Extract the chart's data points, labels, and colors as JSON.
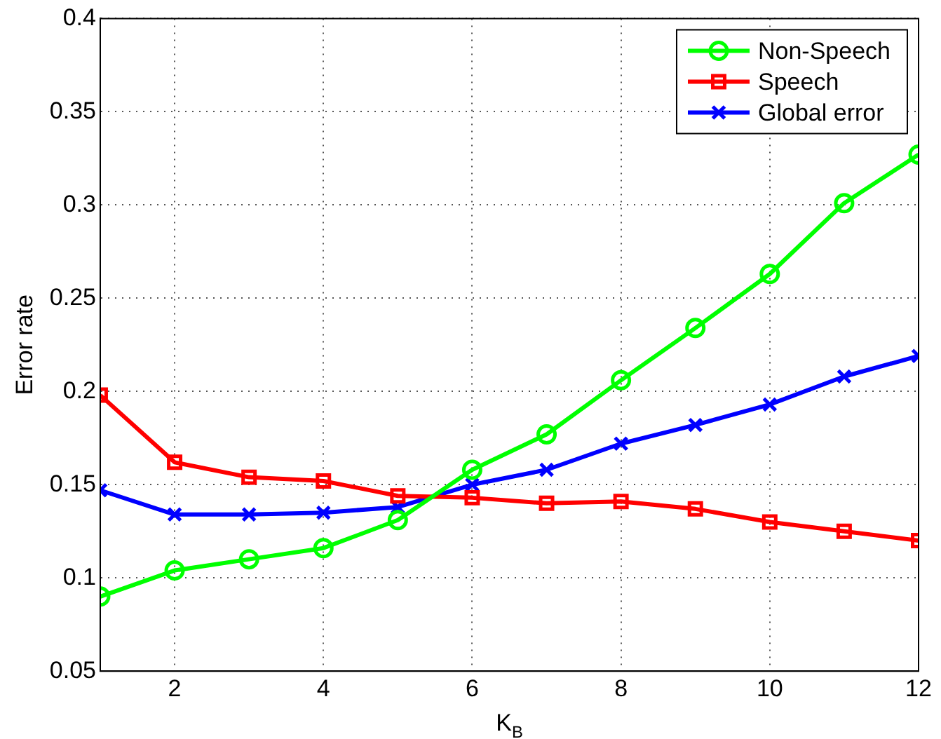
{
  "chart_data": {
    "type": "line",
    "xlabel": "K$_{B}$",
    "ylabel": "Error rate",
    "x": [
      1,
      2,
      3,
      4,
      5,
      6,
      7,
      8,
      9,
      10,
      11,
      12
    ],
    "xlim": [
      1,
      12
    ],
    "xticks": [
      2,
      4,
      6,
      8,
      10,
      12
    ],
    "ylim": [
      0.05,
      0.4
    ],
    "yticks": [
      0.05,
      0.1,
      0.15,
      0.2,
      0.25,
      0.3,
      0.35,
      0.4
    ],
    "grid": true,
    "legend": "top right",
    "line_style": "solid",
    "series": [
      {
        "name": "Non-Speech",
        "color": "#00ff00",
        "marker": "circle",
        "values": [
          0.09,
          0.104,
          0.11,
          0.116,
          0.131,
          0.158,
          0.177,
          0.206,
          0.234,
          0.263,
          0.301,
          0.327
        ]
      },
      {
        "name": "Speech",
        "color": "#ff0000",
        "marker": "square",
        "values": [
          0.198,
          0.162,
          0.154,
          0.152,
          0.144,
          0.143,
          0.14,
          0.141,
          0.137,
          0.13,
          0.125,
          0.12
        ]
      },
      {
        "name": "Global error",
        "color": "#0000ff",
        "marker": "cross",
        "values": [
          0.147,
          0.134,
          0.134,
          0.135,
          0.138,
          0.15,
          0.158,
          0.172,
          0.182,
          0.193,
          0.208,
          0.219
        ]
      }
    ]
  }
}
